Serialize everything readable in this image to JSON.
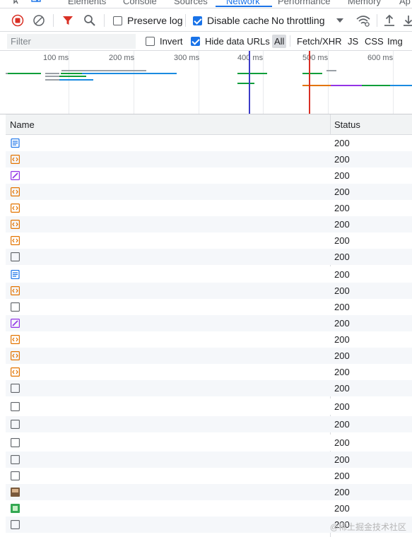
{
  "devtools_tabs": [
    {
      "label": "Elements",
      "active": false
    },
    {
      "label": "Console",
      "active": false
    },
    {
      "label": "Sources",
      "active": false
    },
    {
      "label": "Network",
      "active": true
    },
    {
      "label": "Performance",
      "active": false
    },
    {
      "label": "Memory",
      "active": false
    },
    {
      "label": "Ap",
      "active": false
    }
  ],
  "toolbar": {
    "record_icon": "record-stop-icon",
    "clear_icon": "clear-icon",
    "filter_icon": "filter-funnel-icon",
    "search_icon": "search-icon",
    "preserve_log": {
      "label": "Preserve log",
      "checked": false
    },
    "disable_cache": {
      "label": "Disable cache",
      "checked": true
    },
    "throttling": {
      "value": "No throttling"
    },
    "wifi_icon": "network-conditions-icon",
    "upload_icon": "import-har-icon",
    "download_icon": "export-har-icon"
  },
  "filterbar": {
    "placeholder": "Filter",
    "invert": {
      "label": "Invert",
      "checked": false
    },
    "hide_data_urls": {
      "label": "Hide data URLs",
      "checked": true
    },
    "types": [
      {
        "label": "All",
        "active": true
      },
      {
        "label": "Fetch/XHR",
        "active": false
      },
      {
        "label": "JS",
        "active": false
      },
      {
        "label": "CSS",
        "active": false
      },
      {
        "label": "Img",
        "active": false
      }
    ]
  },
  "overview": {
    "ticks": [
      "100 ms",
      "200 ms",
      "300 ms",
      "400 ms",
      "500 ms",
      "600 ms"
    ],
    "colors": {
      "green": "#0d9e3a",
      "blue": "#1a8be0",
      "gray": "#9aa0a6",
      "orange": "#e37400",
      "purple": "#9334e6",
      "dcl_line": "#3c3cc8",
      "load_line": "#d93025"
    }
  },
  "table": {
    "columns": {
      "name": "Name",
      "status": "Status"
    },
    "rows": [
      {
        "type": "doc",
        "status": "200"
      },
      {
        "type": "script",
        "status": "200"
      },
      {
        "type": "style",
        "status": "200"
      },
      {
        "type": "script",
        "status": "200"
      },
      {
        "type": "script",
        "status": "200"
      },
      {
        "type": "script",
        "status": "200"
      },
      {
        "type": "script",
        "status": "200"
      },
      {
        "type": "other",
        "status": "200"
      },
      {
        "type": "doc",
        "status": "200"
      },
      {
        "type": "script",
        "status": "200"
      },
      {
        "type": "other",
        "status": "200"
      },
      {
        "type": "style",
        "status": "200"
      },
      {
        "type": "script",
        "status": "200"
      },
      {
        "type": "script",
        "status": "200"
      },
      {
        "type": "script",
        "status": "200"
      },
      {
        "type": "other",
        "status": "200"
      },
      {
        "type": "other",
        "status": "200"
      },
      {
        "type": "other",
        "status": "200"
      },
      {
        "type": "other",
        "status": "200"
      },
      {
        "type": "other",
        "status": "200"
      },
      {
        "type": "other",
        "status": "200"
      },
      {
        "type": "image",
        "status": "200"
      },
      {
        "type": "image-green",
        "status": "200"
      },
      {
        "type": "other",
        "status": "200"
      }
    ]
  },
  "watermark": "@稀土掘金技术社区"
}
